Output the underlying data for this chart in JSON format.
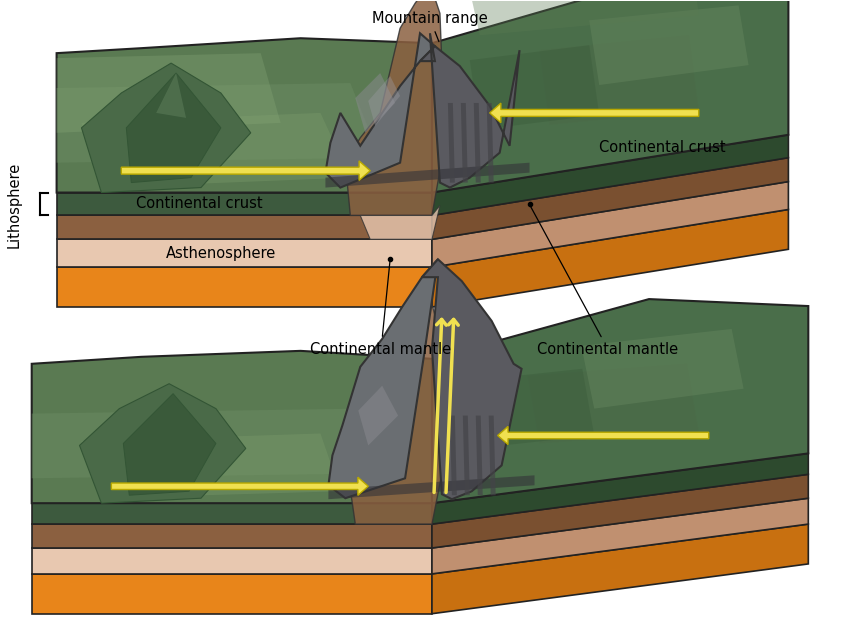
{
  "bg_color": "#ffffff",
  "colors": {
    "green_surface": "#5a7a52",
    "green_dark": "#3d5a3e",
    "green_light": "#7a9a6a",
    "green_medium": "#4a6e4a",
    "brown_crust": "#8B6040",
    "brown_light": "#c4956a",
    "peach_layer": "#ddb89a",
    "pink_layer": "#e8c8b0",
    "orange_mantle": "#e8851a",
    "orange_side": "#c87010",
    "gray_mountain": "#7a7a80",
    "gray_dark": "#555560",
    "gray_medium": "#8a8a90",
    "gray_light": "#aaaaaa",
    "yellow_arrow": "#f0e050",
    "yellow_edge": "#b8a800",
    "brown_side": "#7a5030",
    "dark_green_side": "#2d4a2e"
  },
  "labels": {
    "mountain_range": "Mountain range",
    "lithosphere": "Lithosphere",
    "continental_crust_left": "Continental crust",
    "continental_crust_right": "Continental crust",
    "asthenosphere": "Asthenosphere",
    "continental_mantle_left": "Continental mantle",
    "continental_mantle_right": "Continental mantle"
  },
  "font_size": 10.5
}
